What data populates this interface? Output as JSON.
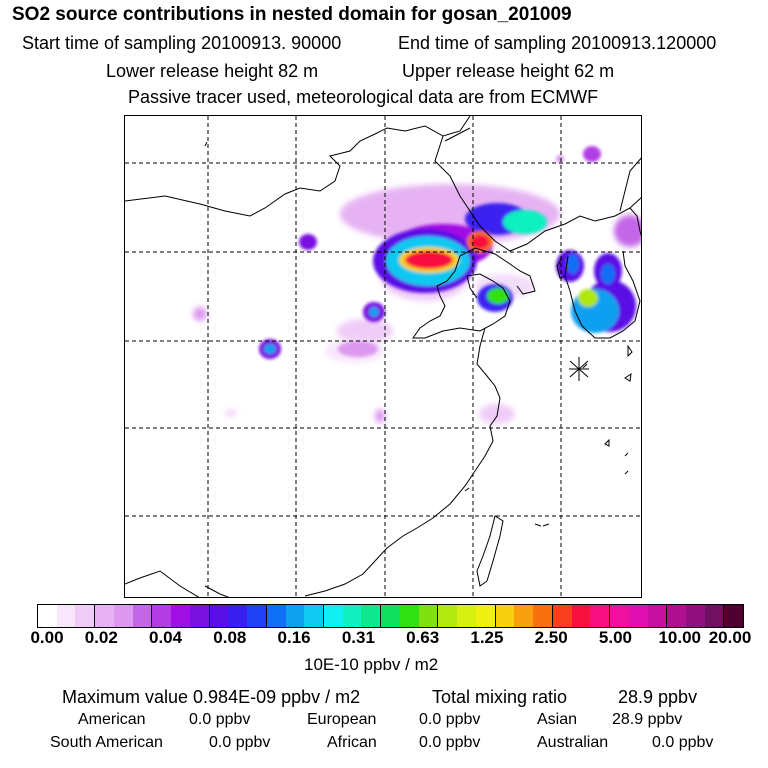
{
  "header": {
    "title": "SO2 source contributions in nested domain for gosan_201009",
    "start_time": "Start time of sampling 20100913. 90000",
    "end_time": "End time of sampling 20100913.120000",
    "lower_height": "Lower release height   82 m",
    "upper_height": "Upper release height   62 m",
    "note": "Passive tracer used, meteorological data are from ECMWF"
  },
  "colorbar": {
    "ticks": [
      "0.00",
      "0.02",
      "0.04",
      "0.08",
      "0.16",
      "0.31",
      "0.63",
      "1.25",
      "2.50",
      "5.00",
      "10.00",
      "20.00"
    ],
    "unit": "10E-10 ppbv / m2",
    "colors": [
      "#ffffff",
      "#f8e6fb",
      "#efccf7",
      "#e6b2f3",
      "#dd99ef",
      "#c466e8",
      "#b23de5",
      "#a010e5",
      "#7a10e0",
      "#5a10e5",
      "#3a20f0",
      "#2040f5",
      "#1070f5",
      "#10a0f0",
      "#10c8f0",
      "#10f0f0",
      "#10f0c0",
      "#10e890",
      "#10e060",
      "#30e010",
      "#80e010",
      "#b0e810",
      "#d8f010",
      "#f0f010",
      "#f8d010",
      "#f8a010",
      "#f87010",
      "#f84020",
      "#f81040",
      "#f81080",
      "#f010a0",
      "#e010b0",
      "#c810a0",
      "#b01090",
      "#901080",
      "#701060",
      "#500030"
    ]
  },
  "stats": {
    "max_value": "Maximum value  0.984E-09 ppbv / m2",
    "total_label": "Total mixing ratio",
    "total_value": "28.9 ppbv",
    "american_label": "American",
    "american_value": "0.0 ppbv",
    "european_label": "European",
    "european_value": "0.0 ppbv",
    "asian_label": "Asian",
    "asian_value": "28.9 ppbv",
    "south_american_label": "South American",
    "south_american_value": "0.0 ppbv",
    "african_label": "African",
    "african_value": "0.0 ppbv",
    "australian_label": "Australian",
    "australian_value": "0.0 ppbv"
  },
  "map": {
    "receptor_marker": "gosan-station-star"
  }
}
